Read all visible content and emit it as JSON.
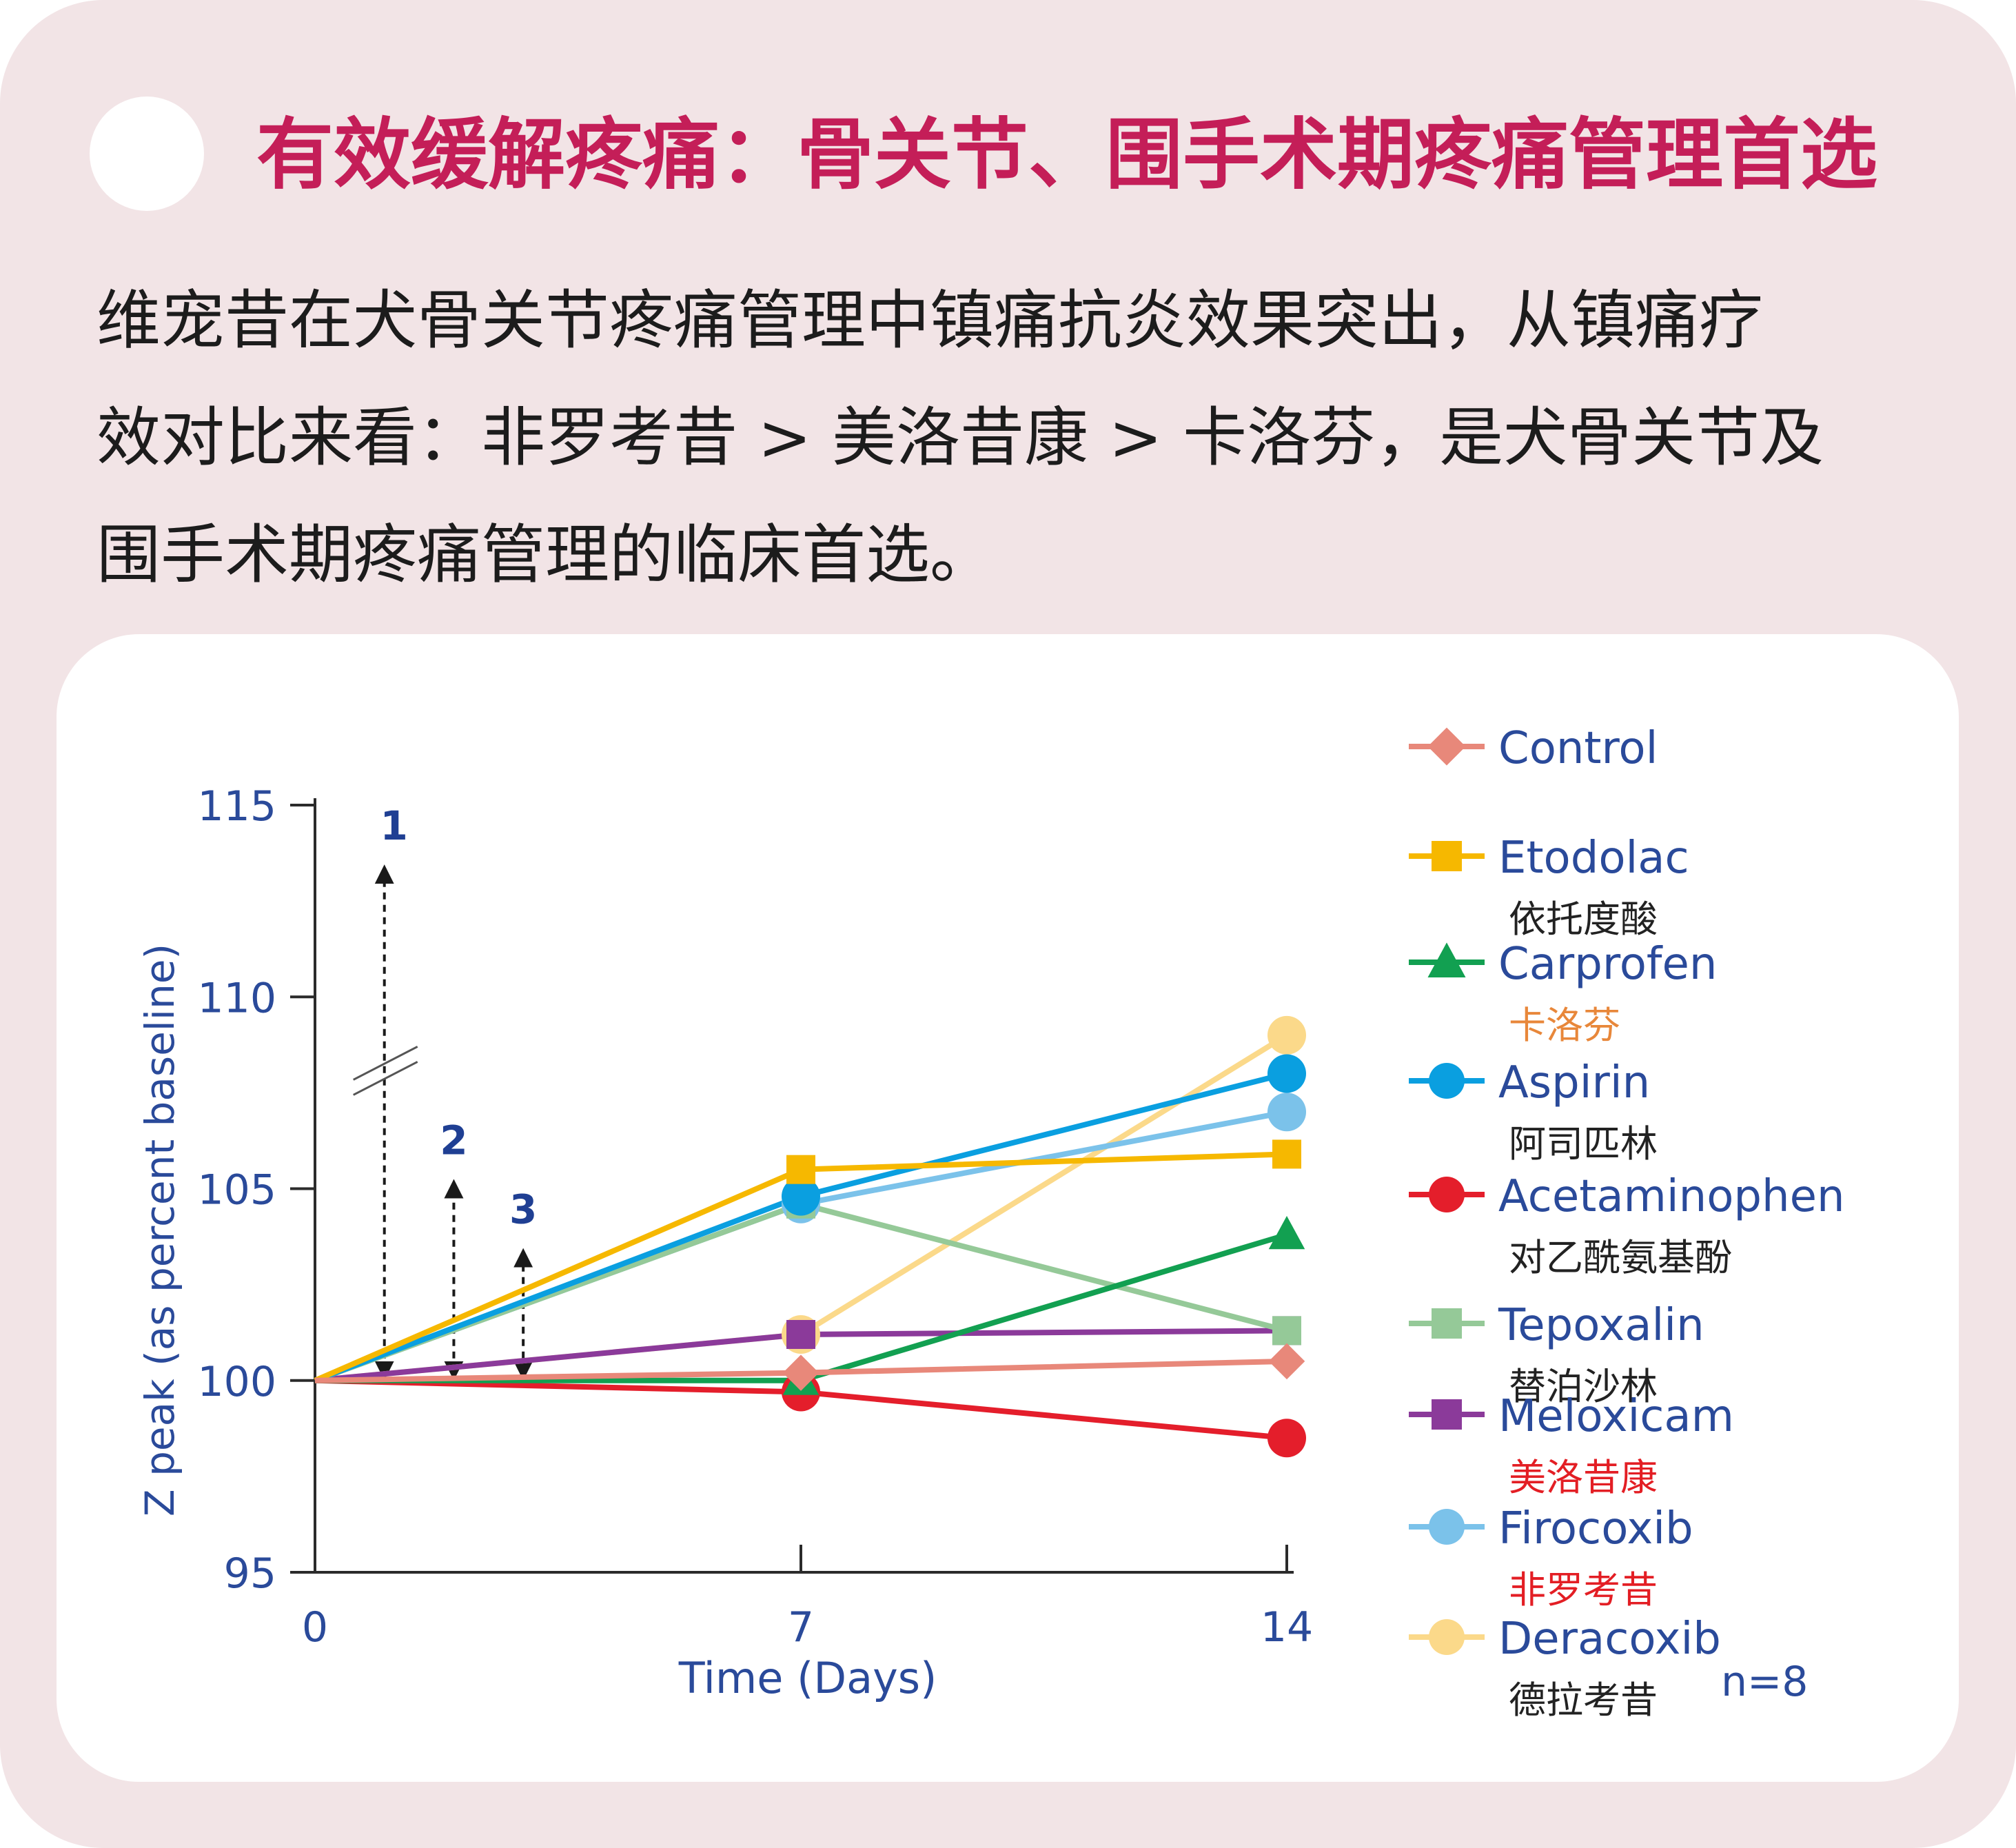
{
  "header": {
    "title": "有效缓解疼痛：骨关节、围手术期疼痛管理首选"
  },
  "intro": {
    "lines": [
      "维宠昔在犬骨关节疼痛管理中镇痛抗炎效果突出，从镇痛疗",
      "效对比来看：非罗考昔 > 美洛昔康 > 卡洛芬，是犬骨关节及",
      "围手术期疼痛管理的临床首选。"
    ]
  },
  "colors": {
    "title": "#c41e58",
    "axis_text": "#2a4a9a",
    "card_bg": "#f2e4e6"
  },
  "chart_data": {
    "type": "line",
    "title": "",
    "xlabel": "Time (Days)",
    "ylabel": "Z peak (as percent baseline)",
    "x": [
      0,
      7,
      14
    ],
    "xticks": [
      "0",
      "7",
      "14"
    ],
    "yticks": [
      "95",
      "100",
      "105",
      "110",
      "115"
    ],
    "ylim": [
      95,
      115
    ],
    "xlim": [
      0,
      14
    ],
    "legend_position": "right",
    "sample_size": "n=8",
    "series": [
      {
        "name": "Control",
        "cn": "",
        "cn_color": "#222222",
        "color": "#e8887a",
        "marker": "diamond",
        "values": [
          100,
          100.2,
          100.5
        ]
      },
      {
        "name": "Etodolac",
        "cn": "依托度酸",
        "cn_color": "#222222",
        "color": "#f6b800",
        "marker": "square",
        "values": [
          100,
          105.5,
          105.9
        ]
      },
      {
        "name": "Carprofen",
        "cn": "卡洛芬",
        "cn_color": "#e8873a",
        "color": "#12a051",
        "marker": "triangle",
        "values": [
          100,
          100,
          103.8
        ]
      },
      {
        "name": "Aspirin",
        "cn": "阿司匹林",
        "cn_color": "#222222",
        "color": "#0a9fe0",
        "marker": "circle",
        "values": [
          100,
          104.8,
          108
        ]
      },
      {
        "name": "Acetaminophen",
        "cn": "对乙酰氨基酚",
        "cn_color": "#222222",
        "color": "#e41e2b",
        "marker": "circle",
        "values": [
          100,
          99.7,
          98.5
        ]
      },
      {
        "name": "Tepoxalin",
        "cn": "替泊沙林",
        "cn_color": "#222222",
        "color": "#95c998",
        "marker": "square",
        "values": [
          100,
          104.6,
          101.3
        ]
      },
      {
        "name": "Meloxicam",
        "cn": "美洛昔康",
        "cn_color": "#e31e24",
        "color": "#8b3a9a",
        "marker": "square",
        "values": [
          100,
          101.2,
          101.3
        ]
      },
      {
        "name": "Firocoxib",
        "cn": "非罗考昔",
        "cn_color": "#e31e24",
        "color": "#7bc2ea",
        "marker": "circle",
        "values": [
          100,
          104.6,
          107
        ]
      },
      {
        "name": "Deracoxib",
        "cn": "德拉考昔",
        "cn_color": "#222222",
        "color": "#fbd98a",
        "marker": "circle",
        "values": [
          100,
          101.2,
          109
        ]
      }
    ],
    "annotations": [
      {
        "label": "1",
        "x": 1.0,
        "from": 100,
        "to": 113.2,
        "break": true
      },
      {
        "label": "2",
        "x": 2.0,
        "from": 100,
        "to": 105
      },
      {
        "label": "3",
        "x": 3.0,
        "from": 100,
        "to": 103.2
      }
    ]
  }
}
